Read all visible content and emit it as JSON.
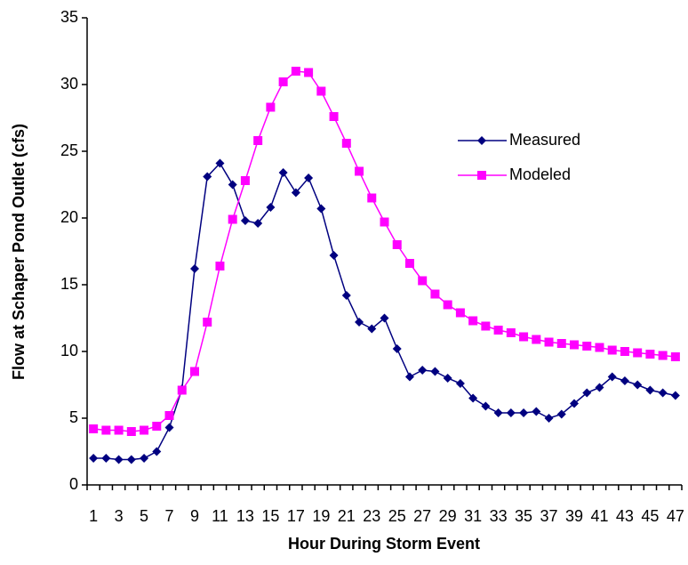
{
  "chart_data": {
    "type": "line",
    "x_label": "Hour During Storm Event",
    "y_label": "Flow at Schaper Pond Outlet (cfs)",
    "categories": [
      "1",
      null,
      "3",
      null,
      "5",
      null,
      "7",
      null,
      "9",
      null,
      "11",
      null,
      "13",
      null,
      "15",
      null,
      "17",
      null,
      "19",
      null,
      "21",
      null,
      "23",
      null,
      "25",
      null,
      "27",
      null,
      "29",
      null,
      "31",
      null,
      "33",
      null,
      "35",
      null,
      "37",
      null,
      "39",
      null,
      "41",
      null,
      "43",
      null,
      "45",
      null,
      "47"
    ],
    "series": [
      {
        "name": "Measured",
        "color": "#000080",
        "marker": "diamond",
        "values": [
          2.0,
          2.0,
          1.9,
          1.9,
          2.0,
          2.5,
          4.3,
          7.2,
          16.2,
          23.1,
          24.1,
          22.5,
          19.8,
          19.6,
          20.8,
          23.4,
          21.9,
          23.0,
          20.7,
          17.2,
          14.2,
          12.2,
          11.7,
          12.5,
          10.2,
          8.1,
          8.6,
          8.5,
          8.0,
          7.6,
          6.5,
          5.9,
          5.4,
          5.4,
          5.4,
          5.5,
          5.0,
          5.3,
          6.1,
          6.9,
          7.3,
          8.1,
          7.8,
          7.5,
          7.1,
          6.9,
          6.7
        ]
      },
      {
        "name": "Modeled",
        "color": "#ff00ff",
        "marker": "square",
        "values": [
          4.2,
          4.1,
          4.1,
          4.0,
          4.1,
          4.4,
          5.2,
          7.1,
          8.5,
          12.2,
          16.4,
          19.9,
          22.8,
          25.8,
          28.3,
          30.2,
          31.0,
          30.9,
          29.5,
          27.6,
          25.6,
          23.5,
          21.5,
          19.7,
          18.0,
          16.6,
          15.3,
          14.3,
          13.5,
          12.9,
          12.3,
          11.9,
          11.6,
          11.4,
          11.1,
          10.9,
          10.7,
          10.6,
          10.5,
          10.4,
          10.3,
          10.1,
          10.0,
          9.9,
          9.8,
          9.7,
          9.6
        ]
      }
    ],
    "ylim": [
      0,
      35
    ],
    "yticks": [
      0,
      5,
      10,
      15,
      20,
      25,
      30,
      35
    ],
    "grid": false
  }
}
